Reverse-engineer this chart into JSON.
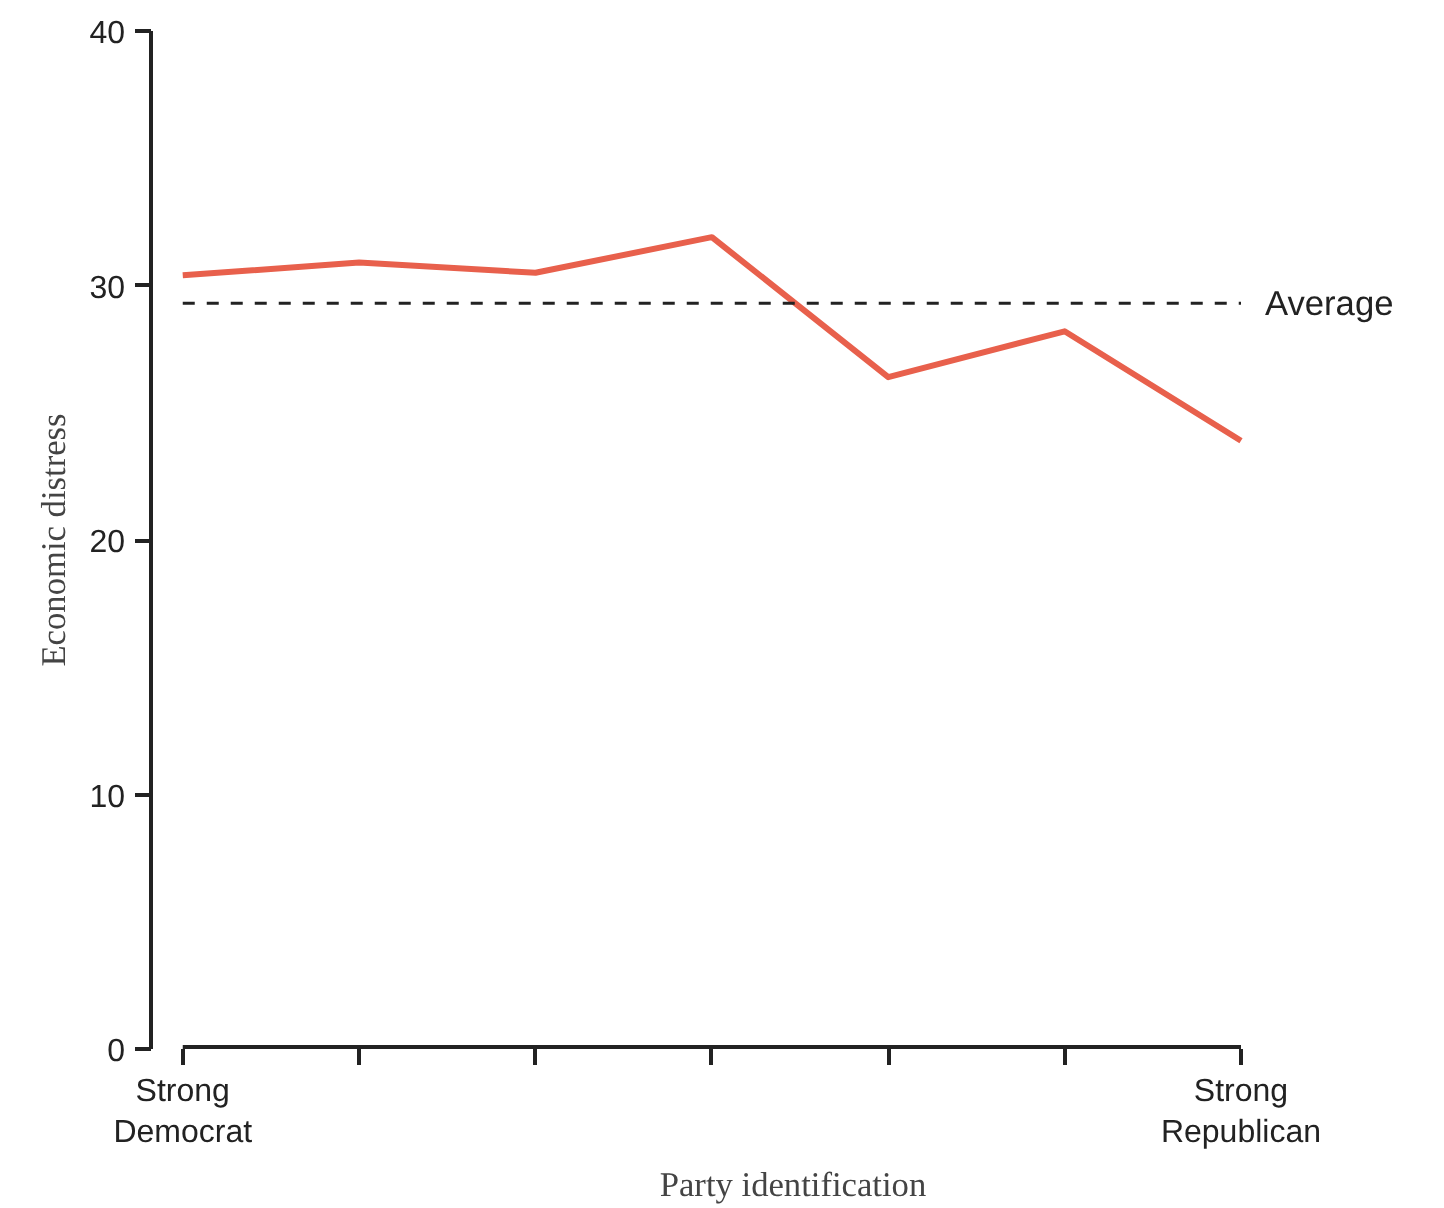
{
  "chart_data": {
    "type": "line",
    "xlabel": "Party identification",
    "ylabel": "Economic distress",
    "categories": [
      "Strong\nDemocrat",
      null,
      null,
      null,
      null,
      null,
      "Strong\nRepublican"
    ],
    "series": [
      {
        "color": "#e8604c",
        "values": [
          30.4,
          30.9,
          30.5,
          31.9,
          26.4,
          28.2,
          23.9
        ]
      }
    ],
    "ylim": [
      0,
      40
    ],
    "yticks": [
      0,
      10,
      20,
      30,
      40
    ],
    "grid": false,
    "ref_lines": [
      {
        "axis": "y",
        "value": 29.3,
        "label": "Average",
        "color": "#222222",
        "line_style": "dashed"
      }
    ]
  }
}
